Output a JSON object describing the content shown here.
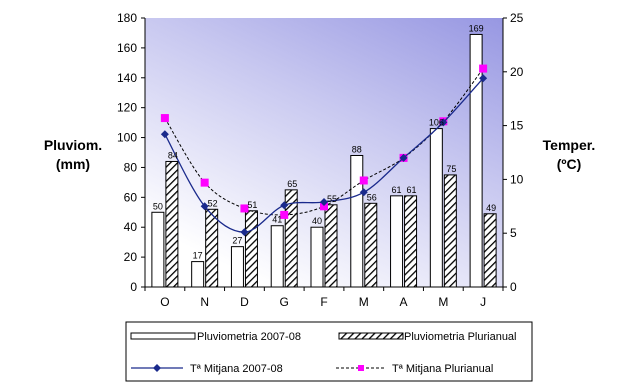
{
  "chart_data": {
    "type": "bar",
    "categories": [
      "O",
      "N",
      "D",
      "G",
      "F",
      "M",
      "A",
      "M",
      "J"
    ],
    "left_axis": {
      "title_line1": "Pluviom.",
      "title_line2": "(mm)",
      "ylim": [
        0,
        180
      ],
      "ticks": [
        0,
        20,
        40,
        60,
        80,
        100,
        120,
        140,
        160,
        180
      ]
    },
    "right_axis": {
      "title_line1": "Temper.",
      "title_line2": "(ºC)",
      "ylim": [
        0,
        25
      ],
      "ticks": [
        0,
        5,
        10,
        15,
        20,
        25
      ]
    },
    "series": [
      {
        "name": "Pluviometria 2007-08",
        "kind": "bar",
        "axis": "left",
        "fill": "#ffffff",
        "values": [
          50,
          17,
          27,
          41,
          40,
          88,
          61,
          106,
          169
        ],
        "labels": [
          "50",
          "17",
          "27",
          "41",
          "40",
          "88",
          "61",
          "106",
          "169"
        ]
      },
      {
        "name": "Pluviometria Plurianual",
        "kind": "bar",
        "axis": "left",
        "fill": "hatched",
        "values": [
          84,
          52,
          51,
          65,
          55,
          56,
          61,
          75,
          49
        ],
        "labels": [
          "84",
          "52",
          "51",
          "65",
          "55",
          "56",
          "61",
          "75",
          "49"
        ]
      },
      {
        "name": "Tª Mitjana 2007-08",
        "kind": "line",
        "axis": "right",
        "color": "#1a2a8c",
        "values": [
          14.2,
          7.5,
          5.1,
          7.6,
          7.9,
          8.8,
          12.0,
          15.3,
          19.4
        ]
      },
      {
        "name": "Tª Mitjana Plurianual",
        "kind": "line",
        "axis": "right",
        "color": "#ff00ff",
        "values": [
          15.7,
          9.7,
          7.3,
          6.7,
          7.5,
          9.9,
          12.0,
          15.4,
          20.3
        ]
      }
    ],
    "legend": {
      "placement": "bottom"
    },
    "background": {
      "top_color": "#9e9ee6",
      "bottom_color": "#ffffff"
    }
  }
}
